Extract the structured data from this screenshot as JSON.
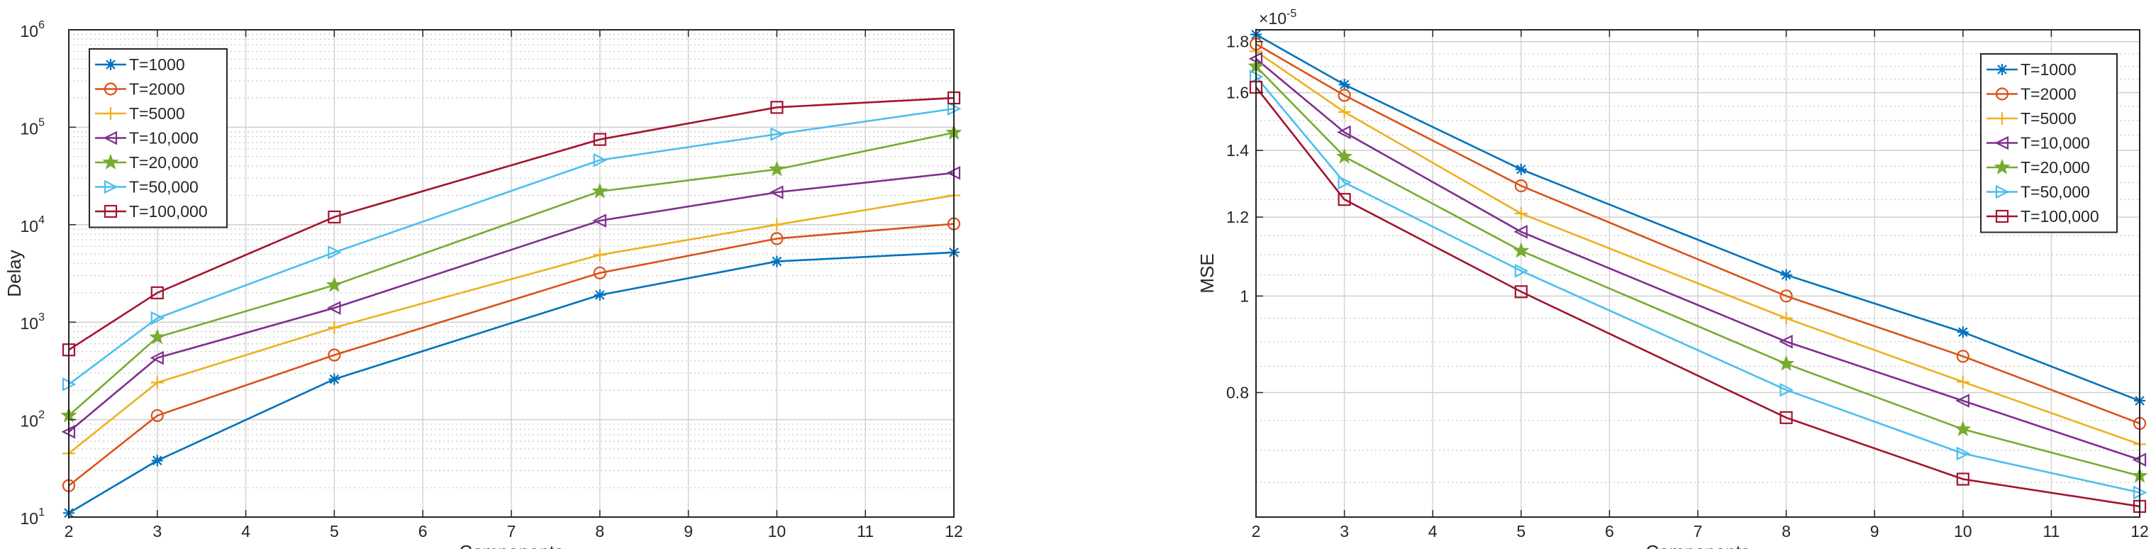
{
  "chart_data": [
    {
      "type": "line",
      "xlabel": "Components",
      "ylabel": "Delay",
      "yscale": "log",
      "ylim": [
        10,
        1000000
      ],
      "xlim": [
        2,
        12
      ],
      "x_ticks": [
        2,
        3,
        4,
        5,
        6,
        7,
        8,
        9,
        10,
        11,
        12
      ],
      "y_ticks": [
        {
          "base": "10",
          "exp": "1"
        },
        {
          "base": "10",
          "exp": "2"
        },
        {
          "base": "10",
          "exp": "3"
        },
        {
          "base": "10",
          "exp": "4"
        },
        {
          "base": "10",
          "exp": "5"
        },
        {
          "base": "10",
          "exp": "6"
        }
      ],
      "grid": true,
      "legend_position": "top-left",
      "x": [
        2,
        3,
        5,
        8,
        10,
        12
      ],
      "series": [
        {
          "name": "T=1000",
          "color": "#0072BD",
          "marker": "asterisk",
          "values": [
            11,
            38,
            260,
            1900,
            4200,
            5200
          ]
        },
        {
          "name": "T=2000",
          "color": "#D95319",
          "marker": "circle",
          "values": [
            21,
            110,
            460,
            3200,
            7200,
            10200
          ]
        },
        {
          "name": "T=5000",
          "color": "#EDB120",
          "marker": "plus",
          "values": [
            45,
            240,
            880,
            4900,
            10000,
            20000
          ]
        },
        {
          "name": "T=10,000",
          "color": "#7E2F8E",
          "marker": "triangle-left",
          "values": [
            75,
            430,
            1400,
            11000,
            21500,
            34000
          ]
        },
        {
          "name": "T=20,000",
          "color": "#77AC30",
          "marker": "pentagram",
          "values": [
            110,
            700,
            2400,
            22000,
            37000,
            88000
          ]
        },
        {
          "name": "T=50,000",
          "color": "#4DBEEE",
          "marker": "triangle-right",
          "values": [
            230,
            1100,
            5200,
            46000,
            85000,
            155000
          ]
        },
        {
          "name": "T=100,000",
          "color": "#A2142F",
          "marker": "square",
          "values": [
            520,
            2000,
            12000,
            75000,
            160000,
            200000
          ]
        }
      ]
    },
    {
      "type": "line",
      "xlabel": "Components",
      "ylabel": "MSE",
      "yscale": "log",
      "y_multiplier": {
        "base": "×10",
        "exp": "-5"
      },
      "ylim": [
        0.6,
        1.85
      ],
      "xlim": [
        2,
        12
      ],
      "x_ticks": [
        2,
        3,
        4,
        5,
        6,
        7,
        8,
        9,
        10,
        11,
        12
      ],
      "y_ticks": [
        "0.8",
        "1",
        "1.2",
        "1.4",
        "1.6",
        "1.8"
      ],
      "grid": true,
      "legend_position": "top-right",
      "x": [
        2,
        3,
        5,
        8,
        10,
        12
      ],
      "series": [
        {
          "name": "T=1000",
          "color": "#0072BD",
          "marker": "asterisk",
          "values": [
            1.83,
            1.63,
            1.34,
            1.05,
            0.92,
            0.785
          ]
        },
        {
          "name": "T=2000",
          "color": "#D95319",
          "marker": "circle",
          "values": [
            1.79,
            1.59,
            1.29,
            1.0,
            0.87,
            0.745
          ]
        },
        {
          "name": "T=5000",
          "color": "#EDB120",
          "marker": "plus",
          "values": [
            1.76,
            1.53,
            1.21,
            0.95,
            0.82,
            0.71
          ]
        },
        {
          "name": "T=10,000",
          "color": "#7E2F8E",
          "marker": "triangle-left",
          "values": [
            1.73,
            1.46,
            1.16,
            0.9,
            0.785,
            0.685
          ]
        },
        {
          "name": "T=20,000",
          "color": "#77AC30",
          "marker": "pentagram",
          "values": [
            1.7,
            1.38,
            1.11,
            0.855,
            0.735,
            0.66
          ]
        },
        {
          "name": "T=50,000",
          "color": "#4DBEEE",
          "marker": "triangle-right",
          "values": [
            1.66,
            1.3,
            1.06,
            0.805,
            0.695,
            0.635
          ]
        },
        {
          "name": "T=100,000",
          "color": "#A2142F",
          "marker": "square",
          "values": [
            1.62,
            1.25,
            1.01,
            0.755,
            0.655,
            0.615
          ]
        }
      ]
    }
  ]
}
